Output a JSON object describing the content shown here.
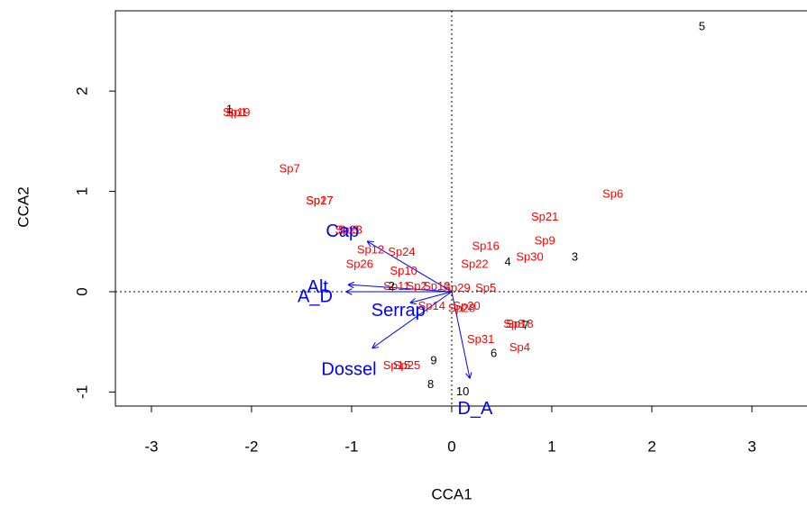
{
  "chart_data": {
    "type": "scatter",
    "xlabel": "CCA1",
    "ylabel": "CCA2",
    "xlim": [
      -3.36,
      3.55
    ],
    "ylim": [
      -1.14,
      2.8
    ],
    "xticks": [
      -3,
      -2,
      -1,
      0,
      1,
      2,
      3
    ],
    "yticks": [
      -1,
      0,
      1,
      2
    ],
    "hlines": [
      0
    ],
    "vlines": [
      0
    ],
    "sites": {
      "color": "#000000",
      "labels": [
        "1",
        "2",
        "3",
        "4",
        "5",
        "6",
        "7",
        "8",
        "9",
        "10"
      ],
      "x": [
        -2.22,
        -0.6,
        1.23,
        0.56,
        2.5,
        0.42,
        0.74,
        -0.21,
        -0.18,
        0.11
      ],
      "y": [
        1.81,
        0.05,
        0.34,
        0.29,
        2.64,
        -0.62,
        -0.34,
        -0.93,
        -0.69,
        -1.0
      ]
    },
    "species": {
      "color": "#ff0000",
      "labels": [
        "Sp1",
        "Sp2",
        "Sp3",
        "Sp4",
        "Sp5",
        "Sp6",
        "Sp7",
        "Sp8",
        "Sp9",
        "Sp10",
        "Sp11",
        "Sp12",
        "Sp13",
        "Sp14",
        "Sp15",
        "Sp16",
        "Sp17",
        "Sp18",
        "Sp19",
        "Sp20",
        "Sp21",
        "Sp22",
        "Sp23",
        "Sp24",
        "Sp25",
        "Sp26",
        "Sp27",
        "Sp28",
        "Sp29",
        "Sp30",
        "Sp31"
      ],
      "x": [
        -2.15,
        -0.35,
        -1.03,
        0.68,
        0.34,
        1.61,
        -1.62,
        0.62,
        0.93,
        -0.48,
        -0.55,
        -0.81,
        -0.15,
        -0.2,
        -0.55,
        0.34,
        -1.32,
        0.68,
        -2.15,
        0.15,
        0.93,
        0.23,
        -1.03,
        -0.5,
        -0.45,
        -0.92,
        -1.32,
        0.1,
        0.05,
        0.78,
        0.29
      ],
      "y": [
        1.78,
        0.05,
        0.61,
        -0.56,
        0.03,
        0.97,
        1.22,
        -0.33,
        0.5,
        0.2,
        0.05,
        0.41,
        0.05,
        -0.15,
        -0.74,
        0.45,
        0.9,
        -0.33,
        1.78,
        -0.15,
        0.74,
        0.27,
        0.61,
        0.39,
        -0.74,
        0.27,
        0.9,
        -0.17,
        0.03,
        0.34,
        -0.48
      ]
    },
    "arrows": {
      "color": "#0000ff",
      "labels": [
        "Cap",
        "Alt",
        "A_D",
        "Serrap",
        "Dossel",
        "D_A"
      ],
      "x": [
        -0.84,
        -1.03,
        -1.05,
        -0.41,
        -0.79,
        0.18
      ],
      "y": [
        0.5,
        0.07,
        0.0,
        -0.11,
        -0.56,
        -0.86
      ]
    }
  }
}
